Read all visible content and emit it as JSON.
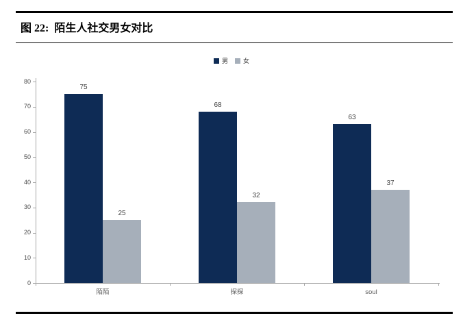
{
  "figure": {
    "title": "图 22:  陌生人社交男女对比"
  },
  "chart_data": {
    "type": "bar",
    "title": "陌生人社交男女对比",
    "categories": [
      "陌陌",
      "探探",
      "soul"
    ],
    "series": [
      {
        "name": "男",
        "color": "#0e2b55",
        "values": [
          75,
          68,
          63
        ]
      },
      {
        "name": "女",
        "color": "#a6afba",
        "values": [
          25,
          32,
          37
        ]
      }
    ],
    "ylim": [
      0,
      80
    ],
    "yticks": [
      0,
      10,
      20,
      30,
      40,
      50,
      60,
      70,
      80
    ],
    "grid": false,
    "legend_position": "top-center",
    "data_labels": true,
    "xlabel": "",
    "ylabel": ""
  },
  "colors": {
    "male_bar": "#0e2b55",
    "female_bar": "#a6afba",
    "axis": "#a6a6a6",
    "tick_text": "#4d4d4d",
    "rule": "#000000"
  }
}
